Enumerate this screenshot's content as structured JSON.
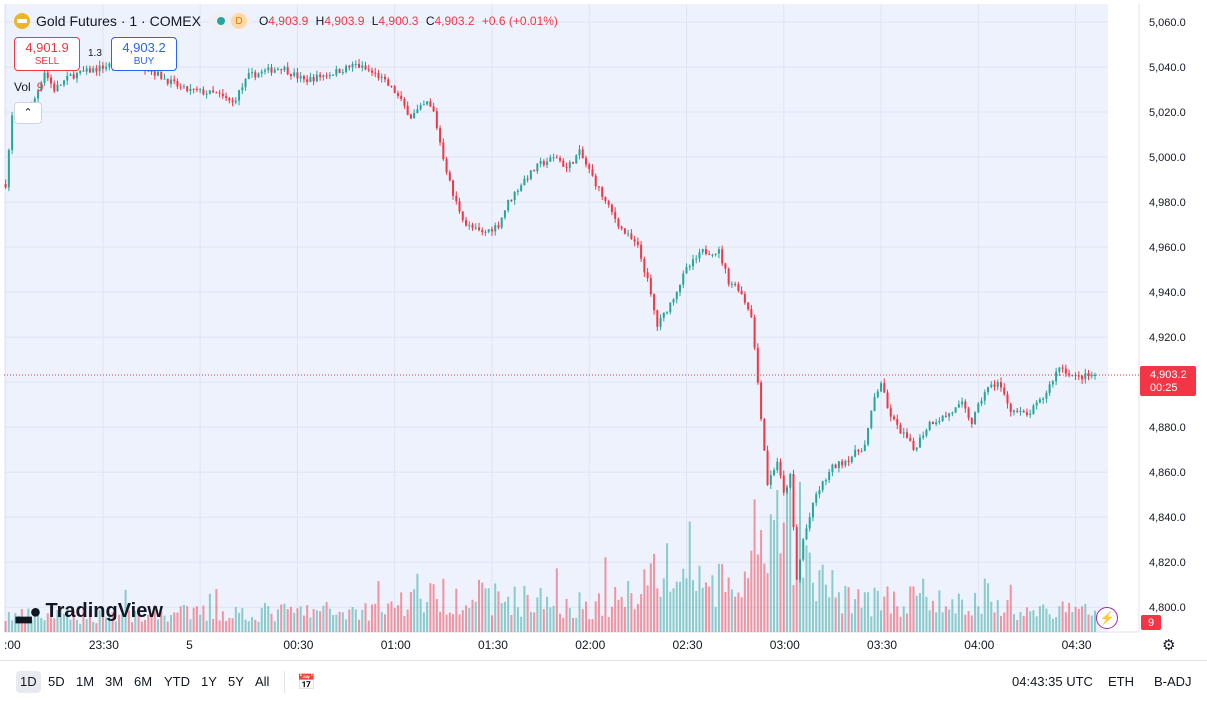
{
  "header": {
    "symbol_label": "Gold Futures · 1 · COMEX",
    "session_badge": "D",
    "ohlc": {
      "o_label": "O",
      "o_value": "4,903.9",
      "h_label": "H",
      "h_value": "4,903.9",
      "l_label": "L",
      "l_value": "4,900.3",
      "c_label": "C",
      "c_value": "4,903.2",
      "change": "+0.6 (+0.01%)"
    }
  },
  "trade": {
    "sell_price": "4,901.9",
    "sell_label": "SELL",
    "spread": "1.3",
    "buy_price": "4,903.2",
    "buy_label": "BUY"
  },
  "volume": {
    "label": "Vol",
    "value": "9"
  },
  "branding": {
    "logo_text": "TradingView"
  },
  "bottom_bar": {
    "ranges": [
      "1D",
      "5D",
      "1M",
      "3M",
      "6M",
      "YTD",
      "1Y",
      "5Y",
      "All"
    ],
    "active_range": "1D",
    "clock": "04:43:35 UTC",
    "session": "ETH",
    "adjust": "B-ADJ"
  },
  "colors": {
    "up": "#26a69a",
    "down": "#f23645",
    "background": "#eef2fd"
  },
  "chart_data": {
    "type": "candlestick",
    "title": "Gold Futures · 1 · COMEX",
    "interval": "1 minute",
    "y_ticks": [
      4800,
      4820,
      4840,
      4860,
      4880,
      4900,
      4920,
      4940,
      4960,
      4980,
      5000,
      5020,
      5040,
      5060
    ],
    "y_tick_labels": [
      "4,800.0",
      "4,820.0",
      "4,840.0",
      "4,860.0",
      "4,880.0",
      "4,900.0",
      "4,920.0",
      "4,940.0",
      "4,960.0",
      "4,980.0",
      "5,000.0",
      "5,020.0",
      "5,040.0",
      "5,060.0"
    ],
    "ylim": [
      4789,
      5068
    ],
    "x_tick_labels": [
      ":00",
      "23:30",
      "5",
      "00:30",
      "01:00",
      "01:30",
      "02:00",
      "02:30",
      "03:00",
      "03:30",
      "04:00",
      "04:30"
    ],
    "x_tick_minutes": [
      -60,
      -30,
      0,
      30,
      60,
      90,
      120,
      150,
      180,
      210,
      240,
      270
    ],
    "x_range_minutes": [
      -60.5,
      280
    ],
    "last_price": 4903.2,
    "last_price_label": "4,903.2",
    "countdown": "00:25",
    "volume_last": "9",
    "price_path": [
      [
        -60,
        4988
      ],
      [
        -58,
        5018
      ],
      [
        -52,
        5022
      ],
      [
        -48,
        5038
      ],
      [
        -45,
        5030
      ],
      [
        -40,
        5036
      ],
      [
        -30,
        5040
      ],
      [
        -22,
        5043
      ],
      [
        -18,
        5041
      ],
      [
        -10,
        5034
      ],
      [
        -5,
        5030
      ],
      [
        5,
        5028
      ],
      [
        10,
        5024
      ],
      [
        15,
        5036
      ],
      [
        25,
        5040
      ],
      [
        32,
        5034
      ],
      [
        40,
        5037
      ],
      [
        48,
        5041
      ],
      [
        55,
        5036
      ],
      [
        60,
        5029
      ],
      [
        65,
        5018
      ],
      [
        70,
        5024
      ],
      [
        72,
        5020
      ],
      [
        75,
        5000
      ],
      [
        78,
        4983
      ],
      [
        82,
        4970
      ],
      [
        87,
        4966
      ],
      [
        92,
        4970
      ],
      [
        95,
        4980
      ],
      [
        100,
        4990
      ],
      [
        105,
        4997
      ],
      [
        110,
        5000
      ],
      [
        113,
        4995
      ],
      [
        117,
        5002
      ],
      [
        120,
        4994
      ],
      [
        125,
        4980
      ],
      [
        130,
        4968
      ],
      [
        135,
        4960
      ],
      [
        138,
        4945
      ],
      [
        141,
        4925
      ],
      [
        145,
        4935
      ],
      [
        150,
        4950
      ],
      [
        155,
        4958
      ],
      [
        160,
        4958
      ],
      [
        163,
        4945
      ],
      [
        166,
        4942
      ],
      [
        170,
        4930
      ],
      [
        173,
        4885
      ],
      [
        175,
        4855
      ],
      [
        178,
        4865
      ],
      [
        180,
        4850
      ],
      [
        182,
        4858
      ],
      [
        184,
        4812
      ],
      [
        186,
        4830
      ],
      [
        190,
        4850
      ],
      [
        195,
        4862
      ],
      [
        200,
        4866
      ],
      [
        205,
        4872
      ],
      [
        208,
        4893
      ],
      [
        210,
        4900
      ],
      [
        212,
        4888
      ],
      [
        215,
        4880
      ],
      [
        218,
        4875
      ],
      [
        220,
        4870
      ],
      [
        225,
        4882
      ],
      [
        230,
        4885
      ],
      [
        235,
        4890
      ],
      [
        238,
        4882
      ],
      [
        242,
        4896
      ],
      [
        246,
        4900
      ],
      [
        250,
        4888
      ],
      [
        255,
        4885
      ],
      [
        260,
        4893
      ],
      [
        265,
        4907
      ],
      [
        270,
        4902
      ],
      [
        276,
        4903.2
      ]
    ],
    "volume_profile": [
      [
        -60,
        3
      ],
      [
        50,
        4
      ],
      [
        65,
        6
      ],
      [
        80,
        7
      ],
      [
        120,
        5
      ],
      [
        130,
        6
      ],
      [
        140,
        12
      ],
      [
        150,
        10
      ],
      [
        165,
        8
      ],
      [
        172,
        12
      ],
      [
        178,
        18
      ],
      [
        182,
        20
      ],
      [
        186,
        12
      ],
      [
        195,
        8
      ],
      [
        205,
        6
      ],
      [
        215,
        6
      ],
      [
        240,
        5
      ],
      [
        260,
        4
      ],
      [
        276,
        4
      ]
    ],
    "volume_ylim": [
      0,
      30
    ]
  }
}
